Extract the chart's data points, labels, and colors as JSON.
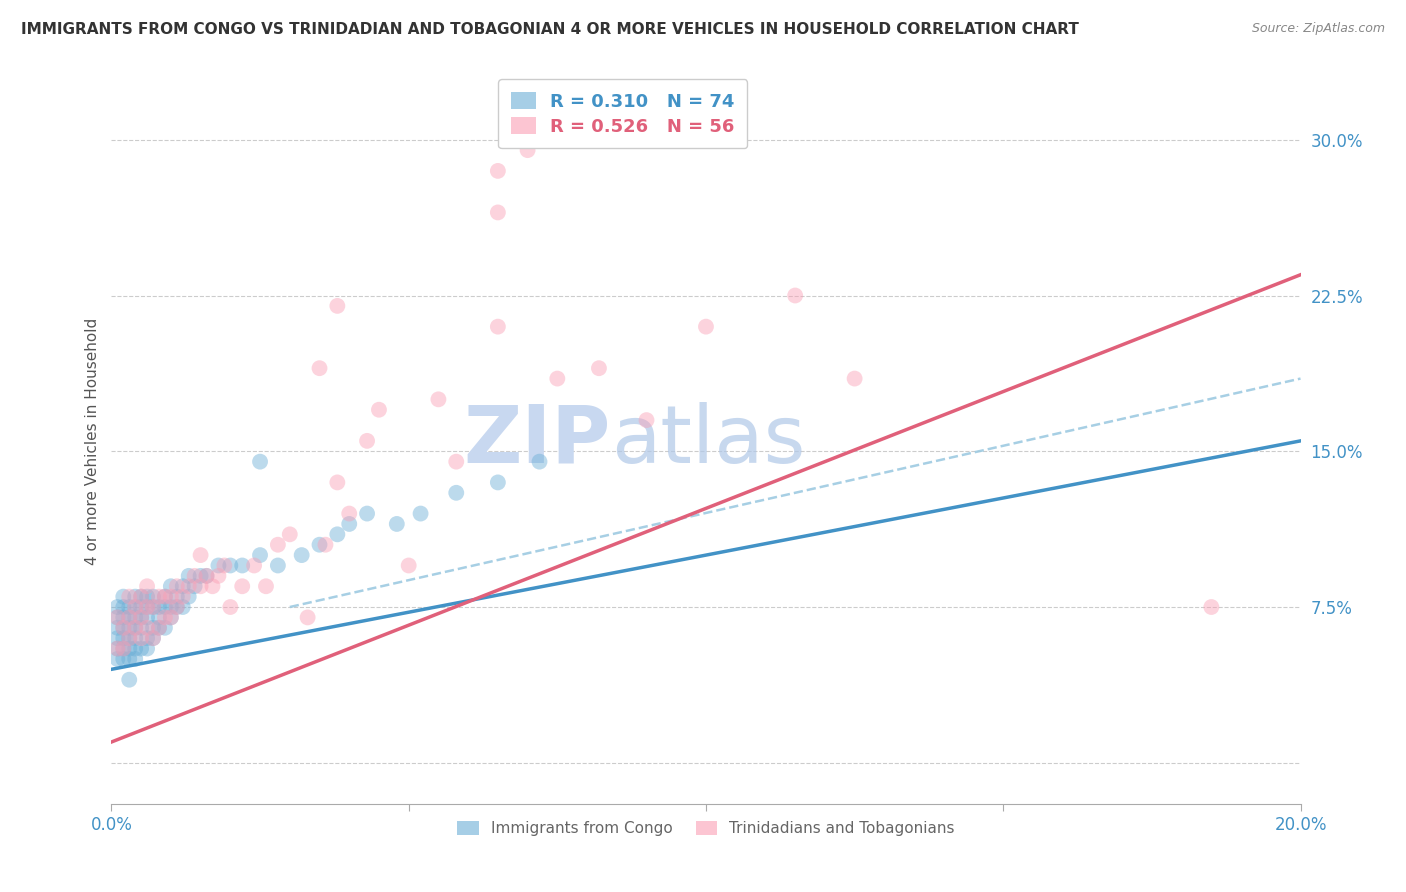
{
  "title": "IMMIGRANTS FROM CONGO VS TRINIDADIAN AND TOBAGONIAN 4 OR MORE VEHICLES IN HOUSEHOLD CORRELATION CHART",
  "source": "Source: ZipAtlas.com",
  "ylabel": "4 or more Vehicles in Household",
  "xlim": [
    0.0,
    0.2
  ],
  "ylim": [
    -0.02,
    0.33
  ],
  "yticks": [
    0.0,
    0.075,
    0.15,
    0.225,
    0.3
  ],
  "ytick_labels": [
    "",
    "7.5%",
    "15.0%",
    "22.5%",
    "30.0%"
  ],
  "xticks": [
    0.0,
    0.05,
    0.1,
    0.15,
    0.2
  ],
  "xtick_labels": [
    "0.0%",
    "",
    "",
    "",
    "20.0%"
  ],
  "blue_scatter_x": [
    0.001,
    0.001,
    0.001,
    0.001,
    0.001,
    0.001,
    0.002,
    0.002,
    0.002,
    0.002,
    0.002,
    0.002,
    0.002,
    0.003,
    0.003,
    0.003,
    0.003,
    0.003,
    0.003,
    0.003,
    0.004,
    0.004,
    0.004,
    0.004,
    0.004,
    0.004,
    0.004,
    0.005,
    0.005,
    0.005,
    0.005,
    0.005,
    0.006,
    0.006,
    0.006,
    0.006,
    0.006,
    0.007,
    0.007,
    0.007,
    0.007,
    0.008,
    0.008,
    0.008,
    0.009,
    0.009,
    0.009,
    0.01,
    0.01,
    0.01,
    0.011,
    0.011,
    0.012,
    0.012,
    0.013,
    0.013,
    0.014,
    0.015,
    0.016,
    0.018,
    0.02,
    0.022,
    0.025,
    0.028,
    0.032,
    0.035,
    0.038,
    0.04,
    0.043,
    0.048,
    0.052,
    0.058,
    0.065,
    0.072
  ],
  "blue_scatter_y": [
    0.055,
    0.06,
    0.065,
    0.07,
    0.075,
    0.05,
    0.055,
    0.06,
    0.065,
    0.07,
    0.075,
    0.08,
    0.05,
    0.05,
    0.055,
    0.06,
    0.065,
    0.07,
    0.075,
    0.04,
    0.055,
    0.06,
    0.065,
    0.07,
    0.075,
    0.08,
    0.05,
    0.055,
    0.065,
    0.07,
    0.075,
    0.08,
    0.055,
    0.06,
    0.07,
    0.075,
    0.08,
    0.06,
    0.065,
    0.075,
    0.08,
    0.065,
    0.07,
    0.075,
    0.065,
    0.075,
    0.08,
    0.07,
    0.075,
    0.085,
    0.075,
    0.08,
    0.075,
    0.085,
    0.08,
    0.09,
    0.085,
    0.09,
    0.09,
    0.095,
    0.095,
    0.095,
    0.1,
    0.095,
    0.1,
    0.105,
    0.11,
    0.115,
    0.12,
    0.115,
    0.12,
    0.13,
    0.135,
    0.145
  ],
  "pink_scatter_x": [
    0.001,
    0.001,
    0.002,
    0.002,
    0.003,
    0.003,
    0.003,
    0.004,
    0.004,
    0.005,
    0.005,
    0.005,
    0.006,
    0.006,
    0.006,
    0.007,
    0.007,
    0.008,
    0.008,
    0.009,
    0.009,
    0.01,
    0.01,
    0.011,
    0.011,
    0.012,
    0.013,
    0.014,
    0.015,
    0.015,
    0.016,
    0.017,
    0.018,
    0.019,
    0.02,
    0.022,
    0.024,
    0.026,
    0.028,
    0.03,
    0.033,
    0.036,
    0.038,
    0.04,
    0.043,
    0.05,
    0.055,
    0.058,
    0.065,
    0.075,
    0.082,
    0.09,
    0.1,
    0.115,
    0.125,
    0.185
  ],
  "pink_scatter_y": [
    0.055,
    0.07,
    0.055,
    0.065,
    0.06,
    0.07,
    0.08,
    0.065,
    0.075,
    0.06,
    0.07,
    0.08,
    0.065,
    0.075,
    0.085,
    0.06,
    0.075,
    0.065,
    0.08,
    0.07,
    0.08,
    0.07,
    0.08,
    0.075,
    0.085,
    0.08,
    0.085,
    0.09,
    0.085,
    0.1,
    0.09,
    0.085,
    0.09,
    0.095,
    0.075,
    0.085,
    0.095,
    0.085,
    0.105,
    0.11,
    0.07,
    0.105,
    0.135,
    0.12,
    0.155,
    0.095,
    0.175,
    0.145,
    0.21,
    0.185,
    0.19,
    0.165,
    0.21,
    0.225,
    0.185,
    0.075
  ],
  "pink_outliers_x": [
    0.035,
    0.038,
    0.045,
    0.065,
    0.065,
    0.07
  ],
  "pink_outliers_y": [
    0.19,
    0.22,
    0.17,
    0.265,
    0.285,
    0.295
  ],
  "blue_outlier_x": [
    0.025
  ],
  "blue_outlier_y": [
    0.145
  ],
  "blue_line": {
    "x0": 0.0,
    "y0": 0.045,
    "x1": 0.2,
    "y1": 0.155
  },
  "pink_line": {
    "x0": 0.0,
    "y0": 0.01,
    "x1": 0.2,
    "y1": 0.235
  },
  "dashed_line": {
    "x0": 0.03,
    "y0": 0.075,
    "x1": 0.2,
    "y1": 0.185
  },
  "blue_scatter_color": "#6baed6",
  "pink_scatter_color": "#fa9fb5",
  "blue_line_color": "#4292c6",
  "pink_line_color": "#e0607a",
  "dashed_line_color": "#9ecae1",
  "background_color": "#ffffff",
  "grid_color": "#cccccc",
  "title_fontsize": 11,
  "axis_label_color": "#4292c6",
  "watermark_text": "ZIPatlas",
  "watermark_color": "#c8d8f0",
  "legend_top": [
    {
      "label": "R = 0.310   N = 74",
      "color": "#6baed6"
    },
    {
      "label": "R = 0.526   N = 56",
      "color": "#fa9fb5"
    }
  ],
  "legend_bottom": [
    {
      "label": "Immigrants from Congo",
      "color": "#6baed6"
    },
    {
      "label": "Trinidadians and Tobagonians",
      "color": "#fa9fb5"
    }
  ]
}
